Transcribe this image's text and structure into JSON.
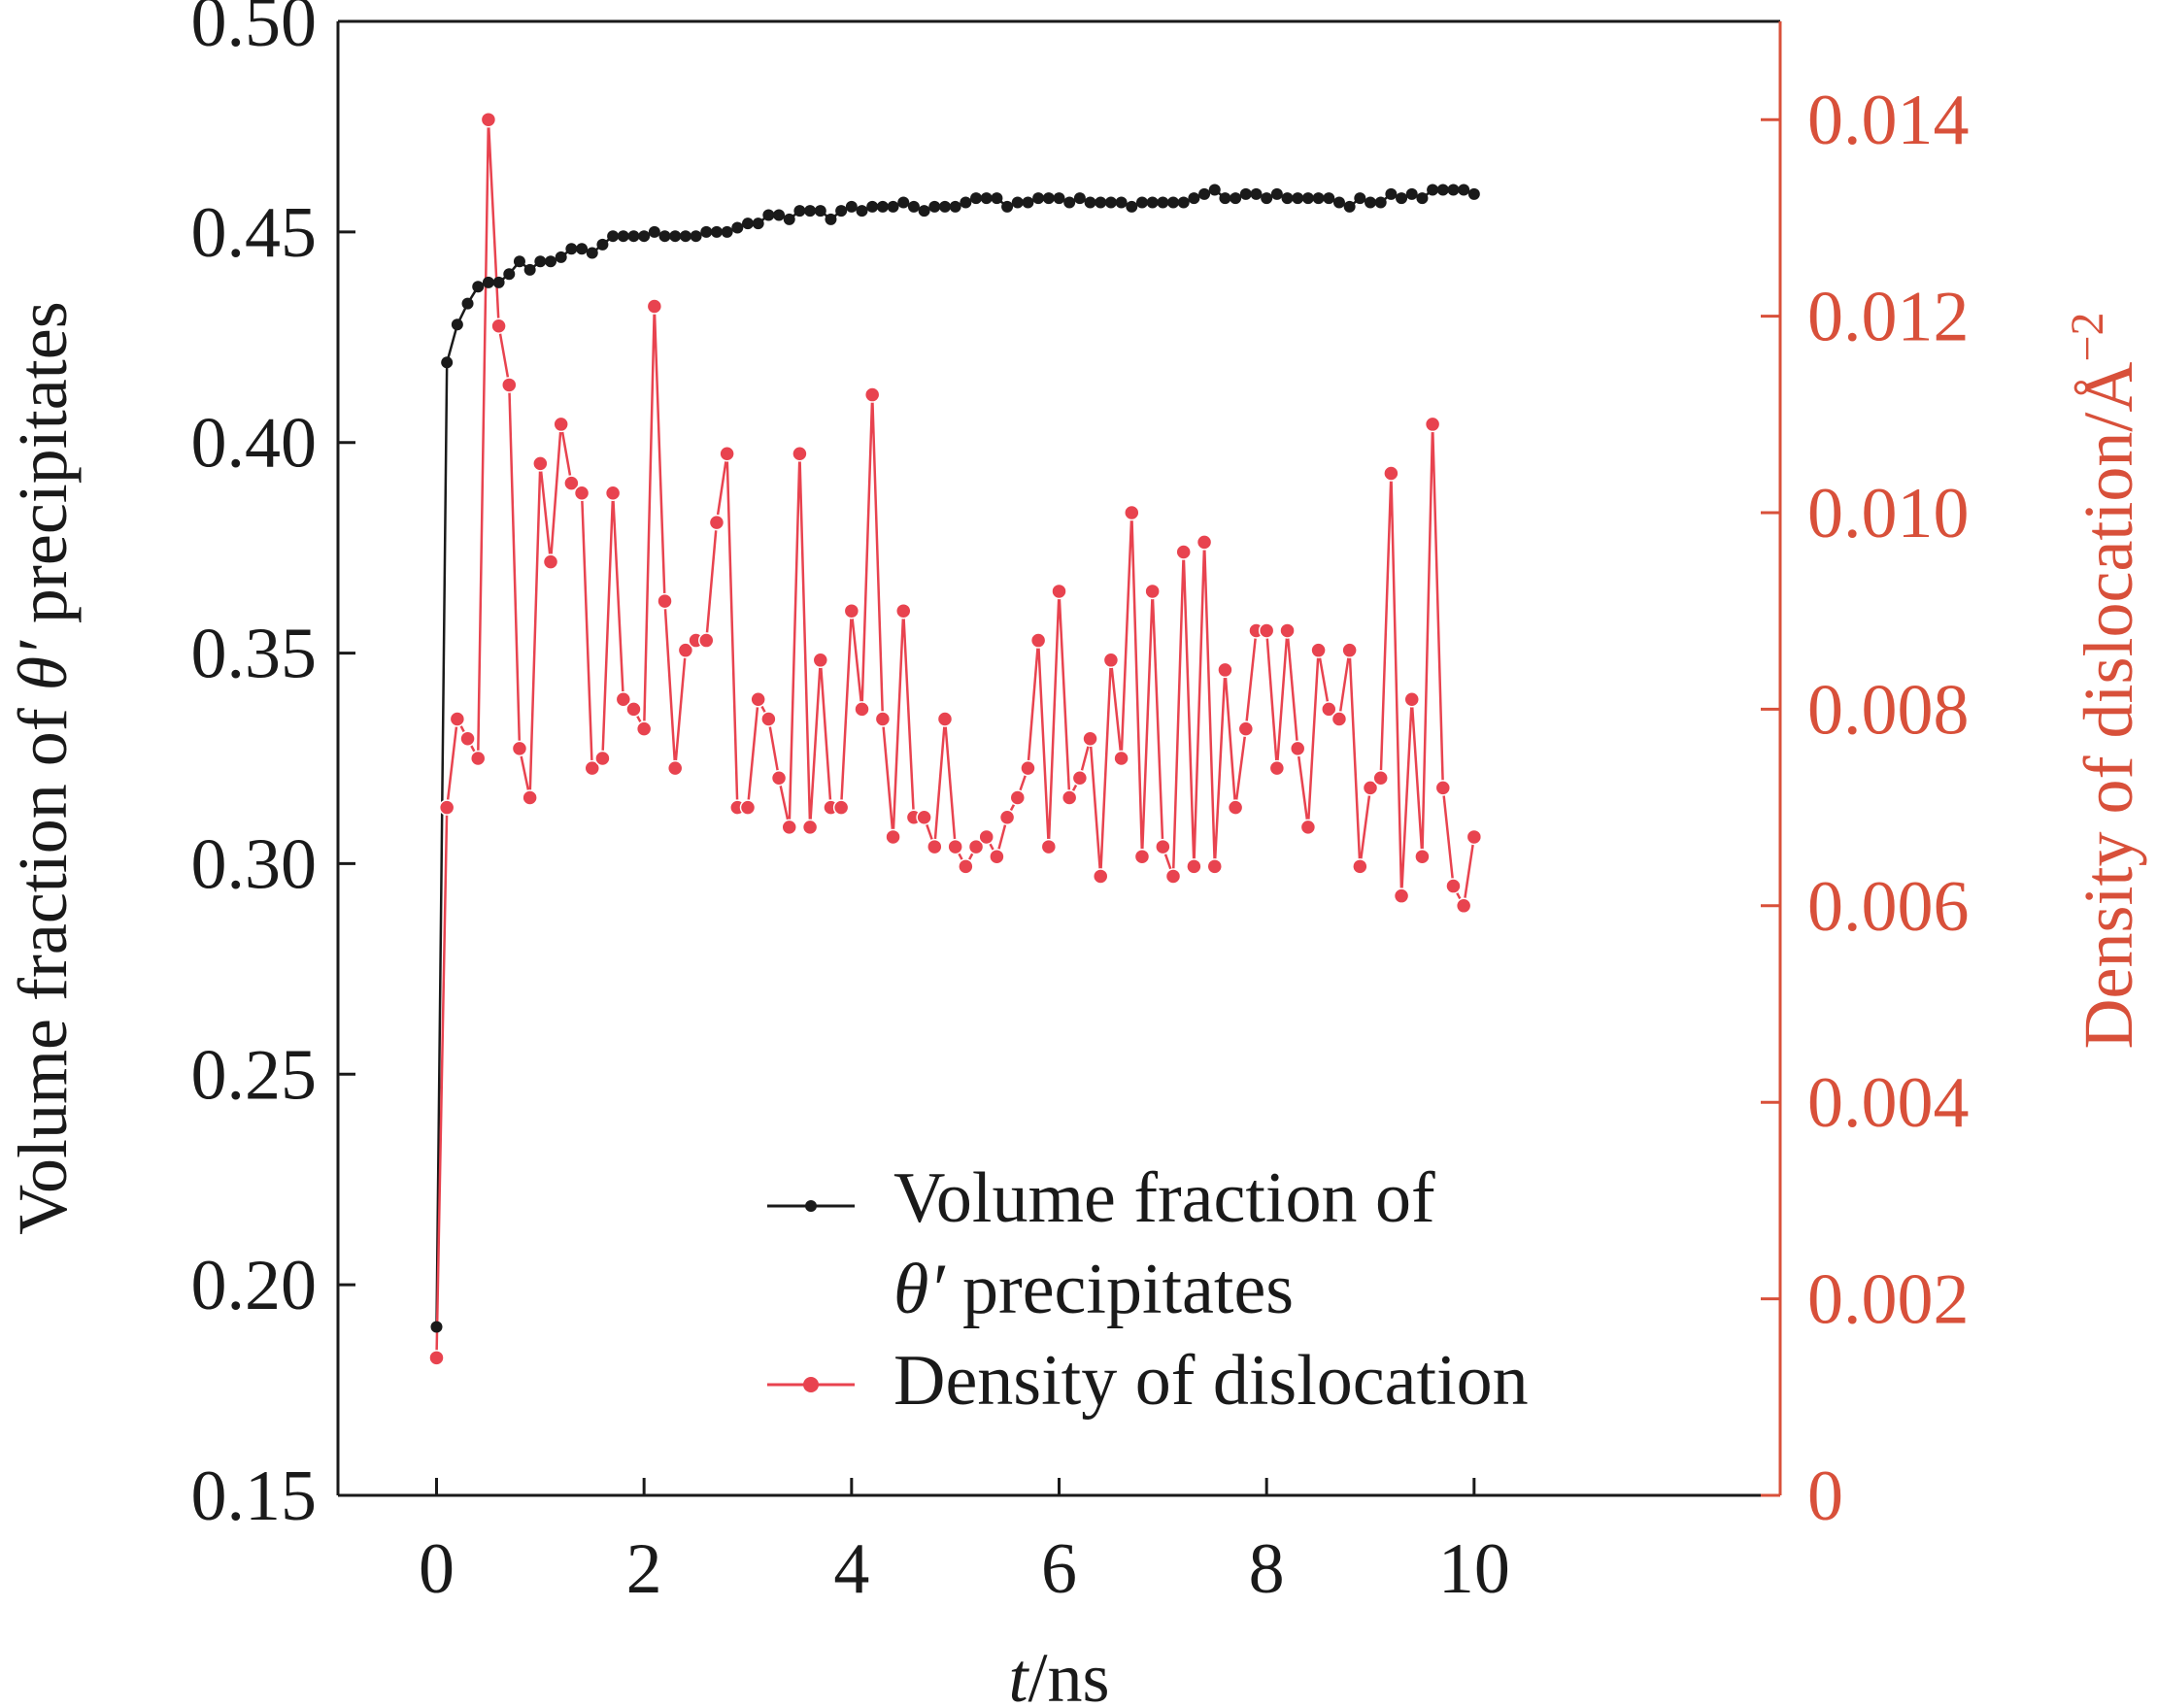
{
  "colors": {
    "black": "#1a1a1a",
    "red": "#e8434f",
    "axis_red": "#d8503a"
  },
  "chart_data": {
    "type": "line",
    "xlabel": {
      "italic": "t",
      "rest": "/ns"
    },
    "ylabel_left": {
      "pre": "Volume fraction of ",
      "sym": "θ′",
      "post": " precipitates"
    },
    "ylabel_right": {
      "text": "Density of dislocation/Å",
      "sup": "−2"
    },
    "xlim": [
      -0.95,
      12.95
    ],
    "ylim_left": [
      0.15,
      0.5
    ],
    "ylim_right": [
      0.0,
      0.015
    ],
    "x_ticks": [
      0,
      2,
      4,
      6,
      8,
      10
    ],
    "x_tick_labels": [
      "0",
      "2",
      "4",
      "6",
      "8",
      "10"
    ],
    "y_left_ticks": [
      0.15,
      0.2,
      0.25,
      0.3,
      0.35,
      0.4,
      0.45,
      0.5
    ],
    "y_left_tick_labels": [
      "0.15",
      "0.20",
      "0.25",
      "0.30",
      "0.35",
      "0.40",
      "0.45",
      "0.50"
    ],
    "y_right_ticks": [
      0,
      0.002,
      0.004,
      0.006,
      0.008,
      0.01,
      0.012,
      0.014
    ],
    "y_right_tick_labels": [
      "0",
      "0.002",
      "0.004",
      "0.006",
      "0.008",
      "0.010",
      "0.012",
      "0.014"
    ],
    "legend": {
      "position": "lower-right",
      "entries": [
        {
          "line1": "Volume fraction of",
          "line2_sym": "θ′",
          "line2_rest": " precipitates"
        },
        {
          "line1": "Density of dislocation"
        }
      ]
    },
    "series": [
      {
        "name": "Volume fraction of θ′ precipitates",
        "axis": "left",
        "x": [
          0,
          0.1,
          0.2,
          0.3,
          0.4,
          0.5,
          0.6,
          0.7,
          0.8,
          0.9,
          1.0,
          1.1,
          1.2,
          1.3,
          1.4,
          1.5,
          1.6,
          1.7,
          1.8,
          1.9,
          2.0,
          2.1,
          2.2,
          2.3,
          2.4,
          2.5,
          2.6,
          2.7,
          2.8,
          2.9,
          3.0,
          3.1,
          3.2,
          3.3,
          3.4,
          3.5,
          3.6,
          3.7,
          3.8,
          3.9,
          4.0,
          4.1,
          4.2,
          4.3,
          4.4,
          4.5,
          4.6,
          4.7,
          4.8,
          4.9,
          5.0,
          5.1,
          5.2,
          5.3,
          5.4,
          5.5,
          5.6,
          5.7,
          5.8,
          5.9,
          6.0,
          6.1,
          6.2,
          6.3,
          6.4,
          6.5,
          6.6,
          6.7,
          6.8,
          6.9,
          7.0,
          7.1,
          7.2,
          7.3,
          7.4,
          7.5,
          7.6,
          7.7,
          7.8,
          7.9,
          8.0,
          8.1,
          8.2,
          8.3,
          8.4,
          8.5,
          8.6,
          8.7,
          8.8,
          8.9,
          9.0,
          9.1,
          9.2,
          9.3,
          9.4,
          9.5,
          9.6,
          9.7,
          9.8,
          9.9,
          10.0
        ],
        "values": [
          0.19,
          0.419,
          0.428,
          0.433,
          0.437,
          0.438,
          0.438,
          0.44,
          0.443,
          0.441,
          0.443,
          0.443,
          0.444,
          0.446,
          0.446,
          0.445,
          0.447,
          0.449,
          0.449,
          0.449,
          0.449,
          0.45,
          0.449,
          0.449,
          0.449,
          0.449,
          0.45,
          0.45,
          0.45,
          0.451,
          0.452,
          0.452,
          0.454,
          0.454,
          0.453,
          0.455,
          0.455,
          0.455,
          0.453,
          0.455,
          0.456,
          0.455,
          0.456,
          0.456,
          0.456,
          0.457,
          0.456,
          0.455,
          0.456,
          0.456,
          0.456,
          0.457,
          0.458,
          0.458,
          0.458,
          0.456,
          0.457,
          0.457,
          0.458,
          0.458,
          0.458,
          0.457,
          0.458,
          0.457,
          0.457,
          0.457,
          0.457,
          0.456,
          0.457,
          0.457,
          0.457,
          0.457,
          0.457,
          0.458,
          0.459,
          0.46,
          0.458,
          0.458,
          0.459,
          0.459,
          0.458,
          0.459,
          0.458,
          0.458,
          0.458,
          0.458,
          0.458,
          0.457,
          0.456,
          0.458,
          0.457,
          0.457,
          0.459,
          0.458,
          0.459,
          0.458,
          0.46,
          0.46,
          0.46,
          0.46,
          0.459
        ]
      },
      {
        "name": "Density of dislocation",
        "axis": "right",
        "x": [
          0,
          0.1,
          0.2,
          0.3,
          0.4,
          0.5,
          0.6,
          0.7,
          0.8,
          0.9,
          1.0,
          1.1,
          1.2,
          1.3,
          1.4,
          1.5,
          1.6,
          1.7,
          1.8,
          1.9,
          2.0,
          2.1,
          2.2,
          2.3,
          2.4,
          2.5,
          2.6,
          2.7,
          2.8,
          2.9,
          3.0,
          3.1,
          3.2,
          3.3,
          3.4,
          3.5,
          3.6,
          3.7,
          3.8,
          3.9,
          4.0,
          4.1,
          4.2,
          4.3,
          4.4,
          4.5,
          4.6,
          4.7,
          4.8,
          4.9,
          5.0,
          5.1,
          5.2,
          5.3,
          5.4,
          5.5,
          5.6,
          5.7,
          5.8,
          5.9,
          6.0,
          6.1,
          6.2,
          6.3,
          6.4,
          6.5,
          6.6,
          6.7,
          6.8,
          6.9,
          7.0,
          7.1,
          7.2,
          7.3,
          7.4,
          7.5,
          7.6,
          7.7,
          7.8,
          7.9,
          8.0,
          8.1,
          8.2,
          8.3,
          8.4,
          8.5,
          8.6,
          8.7,
          8.8,
          8.9,
          9.0,
          9.1,
          9.2,
          9.3,
          9.4,
          9.5,
          9.6,
          9.7,
          9.8,
          9.9,
          10.0
        ],
        "values": [
          0.0014,
          0.007,
          0.0079,
          0.0077,
          0.0075,
          0.014,
          0.0119,
          0.0113,
          0.0076,
          0.0071,
          0.0105,
          0.0095,
          0.0109,
          0.0103,
          0.0102,
          0.0074,
          0.0075,
          0.0102,
          0.0081,
          0.008,
          0.0078,
          0.0121,
          0.0091,
          0.0074,
          0.0086,
          0.0087,
          0.0087,
          0.0099,
          0.0106,
          0.007,
          0.007,
          0.0081,
          0.0079,
          0.0073,
          0.0068,
          0.0106,
          0.0068,
          0.0085,
          0.007,
          0.007,
          0.009,
          0.008,
          0.0112,
          0.0079,
          0.0067,
          0.009,
          0.0069,
          0.0069,
          0.0066,
          0.0079,
          0.0066,
          0.0064,
          0.0066,
          0.0067,
          0.0065,
          0.0069,
          0.0071,
          0.0074,
          0.0087,
          0.0066,
          0.0092,
          0.0071,
          0.0073,
          0.0077,
          0.0063,
          0.0085,
          0.0075,
          0.01,
          0.0065,
          0.0092,
          0.0066,
          0.0063,
          0.0096,
          0.0064,
          0.0097,
          0.0064,
          0.0084,
          0.007,
          0.0078,
          0.0088,
          0.0088,
          0.0074,
          0.0088,
          0.0076,
          0.0068,
          0.0086,
          0.008,
          0.0079,
          0.0086,
          0.0064,
          0.0072,
          0.0073,
          0.0104,
          0.0061,
          0.0081,
          0.0065,
          0.0109,
          0.0072,
          0.0062,
          0.006,
          0.0067
        ]
      }
    ]
  }
}
